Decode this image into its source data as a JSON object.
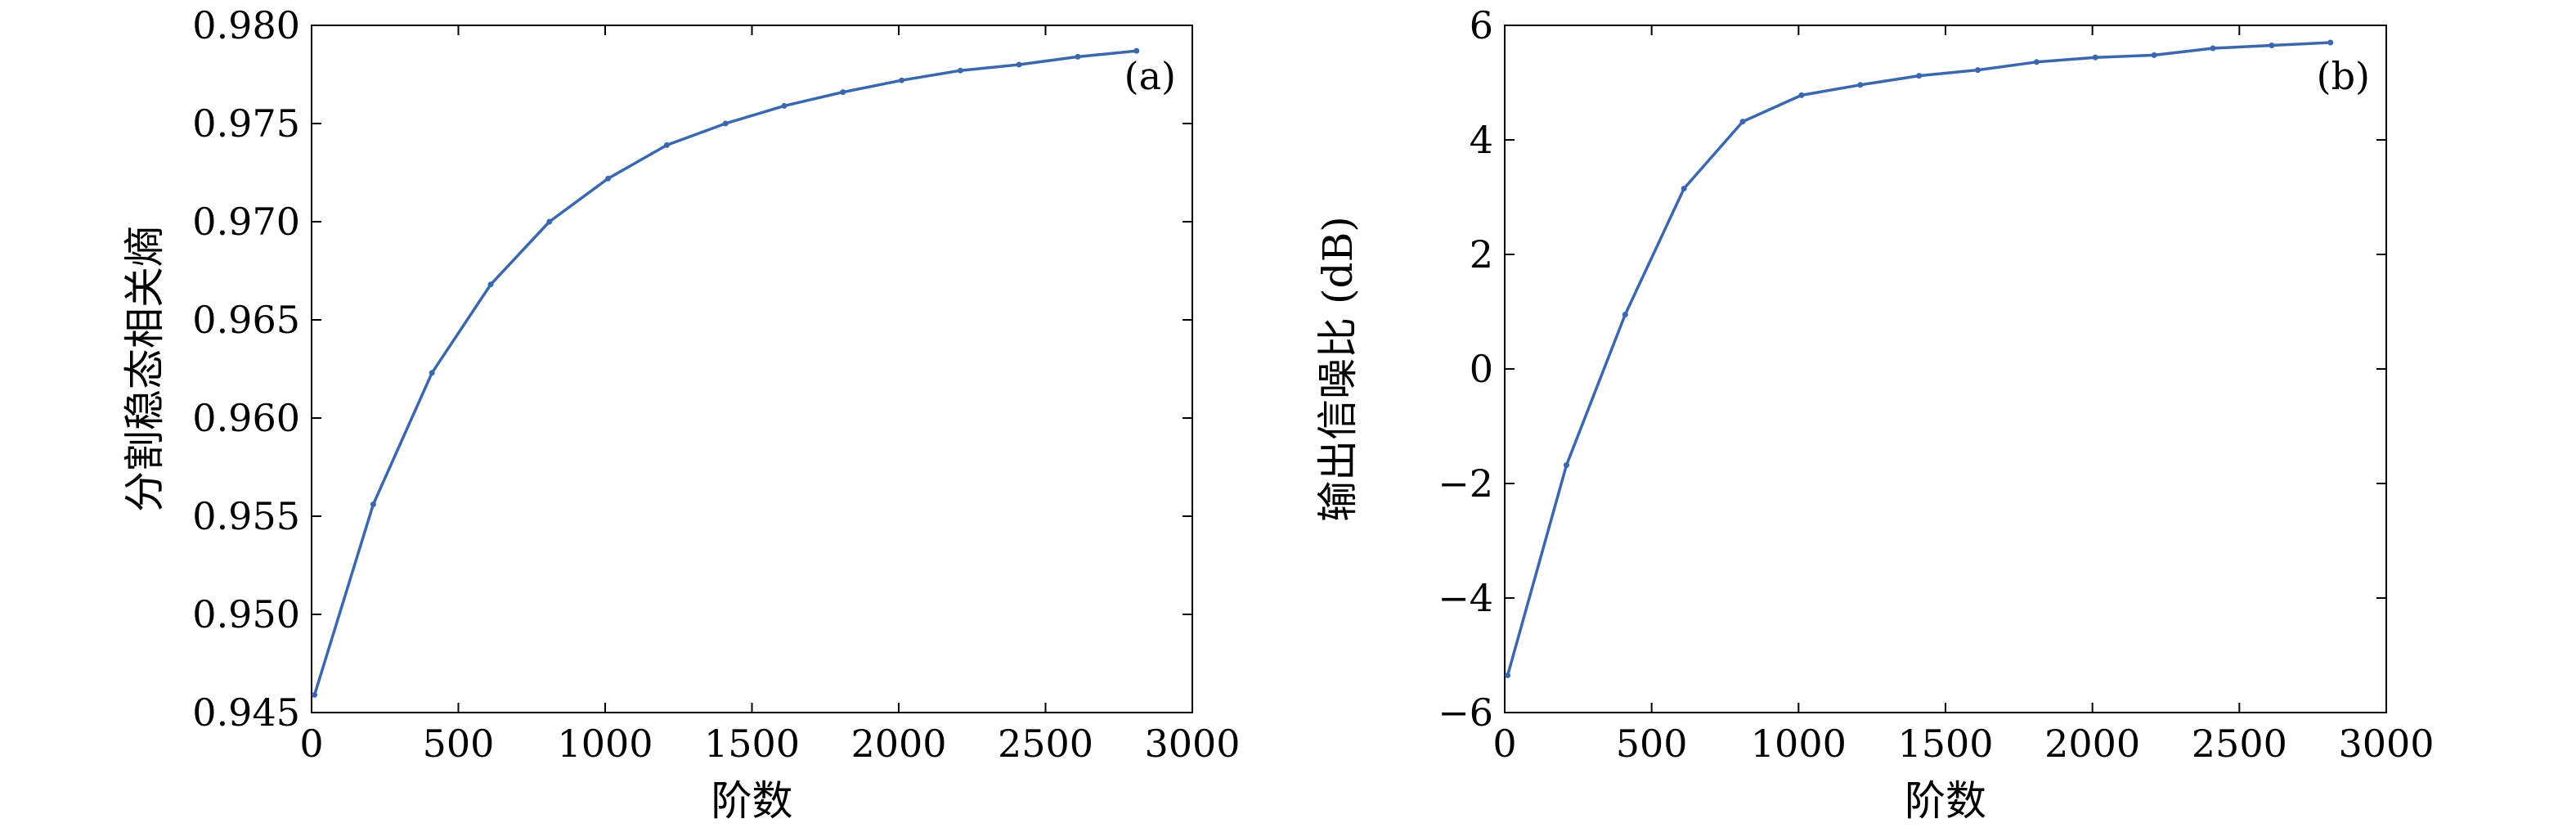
{
  "chart_data": [
    {
      "type": "line",
      "panel_label": "(a)",
      "xlabel": "阶数",
      "ylabel": "分割稳态相关熵",
      "xlim": [
        0,
        3000
      ],
      "ylim": [
        0.945,
        0.98
      ],
      "xticks": [
        0,
        500,
        1000,
        1500,
        2000,
        2500,
        3000
      ],
      "xtick_labels": [
        "0",
        "500",
        "1000",
        "1500",
        "2000",
        "2500",
        "3000"
      ],
      "yticks": [
        0.945,
        0.95,
        0.955,
        0.96,
        0.965,
        0.97,
        0.975,
        0.98
      ],
      "ytick_labels": [
        "0.945",
        "0.950",
        "0.955",
        "0.960",
        "0.965",
        "0.970",
        "0.975",
        "0.980"
      ],
      "grid": false,
      "line_color": "#3b67ae",
      "series": [
        {
          "x": [
            10,
            210,
            410,
            610,
            810,
            1010,
            1210,
            1410,
            1610,
            1810,
            2010,
            2210,
            2410,
            2610,
            2810
          ],
          "y": [
            0.9459,
            0.9556,
            0.9623,
            0.9668,
            0.97,
            0.9722,
            0.9739,
            0.975,
            0.9759,
            0.9766,
            0.9772,
            0.9777,
            0.978,
            0.9784,
            0.9787
          ]
        }
      ]
    },
    {
      "type": "line",
      "panel_label": "(b)",
      "xlabel": "阶数",
      "ylabel": "输出信噪比 (dB)",
      "xlim": [
        0,
        3000
      ],
      "ylim": [
        -6,
        6
      ],
      "xticks": [
        0,
        500,
        1000,
        1500,
        2000,
        2500,
        3000
      ],
      "xtick_labels": [
        "0",
        "500",
        "1000",
        "1500",
        "2000",
        "2500",
        "3000"
      ],
      "yticks": [
        -6,
        -4,
        -2,
        0,
        2,
        4,
        6
      ],
      "ytick_labels": [
        "−6",
        "−4",
        "−2",
        "0",
        "2",
        "4",
        "6"
      ],
      "grid": false,
      "line_color": "#3b67ae",
      "series": [
        {
          "x": [
            10,
            210,
            410,
            610,
            810,
            1010,
            1210,
            1410,
            1610,
            1810,
            2010,
            2210,
            2410,
            2610,
            2810
          ],
          "y": [
            -5.35,
            -1.68,
            0.95,
            3.15,
            4.32,
            4.78,
            4.96,
            5.12,
            5.22,
            5.36,
            5.44,
            5.48,
            5.6,
            5.65,
            5.7
          ]
        }
      ]
    }
  ]
}
